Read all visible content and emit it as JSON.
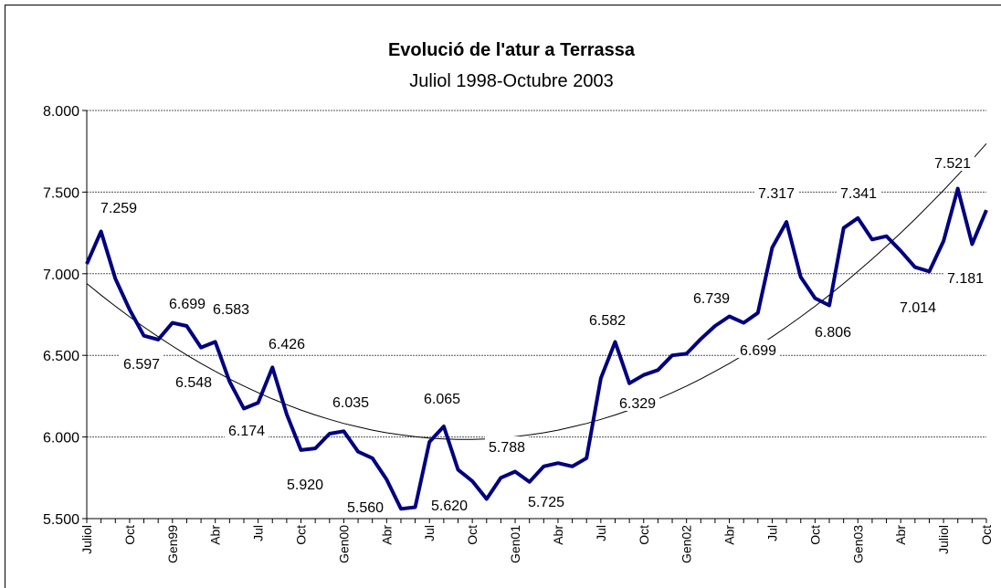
{
  "chart_data": {
    "type": "line",
    "title": "Evolució de l'atur a Terrassa",
    "subtitle": "Juliol 1998-Octubre 2003",
    "categories": [
      "Juliol",
      null,
      null,
      "Oct",
      null,
      null,
      "Gen99",
      null,
      null,
      "Abr",
      null,
      null,
      "Jul",
      null,
      null,
      "Oct",
      null,
      null,
      "Gen00",
      null,
      null,
      "Abr",
      null,
      null,
      "Jul",
      null,
      null,
      "Oct",
      null,
      null,
      "Gen01",
      null,
      null,
      "Abr",
      null,
      null,
      "Jul",
      null,
      null,
      "Oct",
      null,
      null,
      "Gen02",
      null,
      null,
      "Abr",
      null,
      null,
      "Jul",
      null,
      null,
      "Oct",
      null,
      null,
      "Gen03",
      null,
      null,
      "Abr",
      null,
      null,
      "Juliol",
      null,
      null,
      "Oct"
    ],
    "values": [
      7060,
      7259,
      6970,
      6780,
      6620,
      6597,
      6699,
      6680,
      6548,
      6583,
      6340,
      6174,
      6210,
      6426,
      6140,
      5920,
      5930,
      6020,
      6035,
      5910,
      5870,
      5740,
      5560,
      5570,
      5970,
      6065,
      5800,
      5730,
      5620,
      5750,
      5788,
      5725,
      5820,
      5840,
      5820,
      5870,
      6360,
      6582,
      6329,
      6380,
      6410,
      6500,
      6510,
      6600,
      6680,
      6739,
      6699,
      6760,
      7160,
      7317,
      6980,
      6850,
      6806,
      7280,
      7341,
      7210,
      7230,
      7140,
      7040,
      7014,
      7200,
      7521,
      7181,
      7390
    ],
    "value_labels": [
      null,
      "7.259",
      null,
      null,
      null,
      "6.597",
      "6.699",
      null,
      "6.548",
      "6.583",
      null,
      "6.174",
      null,
      "6.426",
      null,
      "5.920",
      null,
      null,
      "6.035",
      null,
      null,
      null,
      "5.560",
      null,
      null,
      "6.065",
      null,
      null,
      "5.620",
      null,
      "5.788",
      "5.725",
      null,
      null,
      null,
      null,
      null,
      "6.582",
      "6.329",
      null,
      null,
      null,
      null,
      null,
      null,
      "6.739",
      "6.699",
      null,
      null,
      "7.317",
      null,
      null,
      "6.806",
      null,
      "7.341",
      null,
      null,
      null,
      null,
      "7.014",
      null,
      "7.521",
      "7.181",
      null
    ],
    "color": "#000080",
    "trendline": {
      "color": "#000000",
      "values": [
        6940,
        6869,
        6801,
        6736,
        6674,
        6614,
        6557,
        6502,
        6450,
        6402,
        6355,
        6312,
        6271,
        6233,
        6198,
        6165,
        6135,
        6108,
        6083,
        6062,
        6042,
        6026,
        6013,
        6002,
        5993,
        5988,
        5985,
        5985,
        5988,
        5993,
        6002,
        6013,
        6026,
        6042,
        6062,
        6083,
        6108,
        6135,
        6165,
        6198,
        6233,
        6271,
        6312,
        6355,
        6402,
        6450,
        6502,
        6557,
        6614,
        6674,
        6736,
        6801,
        6869,
        6940,
        7014,
        7090,
        7169,
        7250,
        7334,
        7422,
        7511,
        7604,
        7699,
        7797
      ]
    },
    "ylim": [
      5500,
      8000
    ],
    "yticks": [
      {
        "value": 5500,
        "label": "5.500"
      },
      {
        "value": 6000,
        "label": "6.000"
      },
      {
        "value": 6500,
        "label": "6.500"
      },
      {
        "value": 7000,
        "label": "7.000"
      },
      {
        "value": 7500,
        "label": "7.500"
      },
      {
        "value": 8000,
        "label": "8.000"
      }
    ],
    "grid": true
  }
}
